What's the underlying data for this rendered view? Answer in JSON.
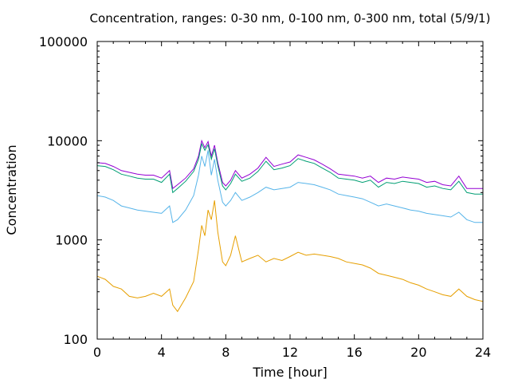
{
  "chart_data": {
    "type": "line",
    "title": "Concentration, ranges: 0-30 nm, 0-100 nm, 0-300 nm, total (5/9/1)",
    "xlabel": "Time [hour]",
    "ylabel": "Concentration",
    "xlim": [
      0,
      24
    ],
    "ylim": [
      100,
      100000
    ],
    "yscale": "log",
    "grid": false,
    "legend": "none",
    "x_ticks": [
      "0",
      "4",
      "8",
      "12",
      "16",
      "20",
      "24"
    ],
    "y_ticks": [
      "100",
      "1000",
      "10000",
      "100000"
    ],
    "x": [
      0,
      0.5,
      1,
      1.5,
      2,
      2.5,
      3,
      3.5,
      4,
      4.5,
      4.7,
      5,
      5.5,
      6,
      6.3,
      6.5,
      6.7,
      6.9,
      7.1,
      7.3,
      7.5,
      7.8,
      8,
      8.3,
      8.6,
      9,
      9.5,
      10,
      10.5,
      11,
      11.5,
      12,
      12.5,
      13,
      13.5,
      14,
      14.5,
      15,
      15.5,
      16,
      16.5,
      17,
      17.5,
      18,
      18.5,
      19,
      19.5,
      20,
      20.5,
      21,
      21.5,
      22,
      22.5,
      23,
      23.5,
      24
    ],
    "series": [
      {
        "color": "#9400d3",
        "values": [
          6000,
          5900,
          5500,
          5000,
          4800,
          4600,
          4500,
          4500,
          4200,
          5000,
          3300,
          3600,
          4200,
          5200,
          7000,
          10000,
          8500,
          9800,
          7000,
          9000,
          6000,
          3800,
          3500,
          4000,
          5000,
          4200,
          4600,
          5300,
          6800,
          5500,
          5800,
          6100,
          7200,
          6800,
          6400,
          5800,
          5200,
          4600,
          4500,
          4400,
          4200,
          4400,
          3800,
          4200,
          4100,
          4300,
          4200,
          4100,
          3800,
          3900,
          3600,
          3500,
          4400,
          3300,
          3300,
          3300
        ]
      },
      {
        "color": "#009e73",
        "values": [
          5600,
          5500,
          5100,
          4600,
          4400,
          4200,
          4100,
          4100,
          3800,
          4600,
          3000,
          3300,
          3900,
          4900,
          6500,
          9300,
          8000,
          9100,
          6500,
          8300,
          5600,
          3500,
          3200,
          3700,
          4600,
          3900,
          4200,
          4900,
          6200,
          5100,
          5300,
          5600,
          6600,
          6200,
          5900,
          5300,
          4800,
          4200,
          4100,
          4000,
          3800,
          4000,
          3400,
          3800,
          3700,
          3900,
          3800,
          3700,
          3400,
          3500,
          3300,
          3200,
          3900,
          3000,
          2900,
          2900
        ]
      },
      {
        "color": "#56b4e9",
        "values": [
          2800,
          2700,
          2500,
          2200,
          2100,
          2000,
          1950,
          1900,
          1850,
          2200,
          1500,
          1600,
          2000,
          2800,
          4500,
          7000,
          5500,
          8000,
          4500,
          6500,
          4000,
          2400,
          2200,
          2500,
          3000,
          2500,
          2700,
          3000,
          3400,
          3200,
          3300,
          3400,
          3800,
          3700,
          3600,
          3400,
          3200,
          2900,
          2800,
          2700,
          2600,
          2400,
          2200,
          2300,
          2200,
          2100,
          2000,
          1950,
          1850,
          1800,
          1750,
          1700,
          1900,
          1600,
          1500,
          1500
        ]
      },
      {
        "color": "#e69f00",
        "values": [
          430,
          400,
          340,
          320,
          270,
          260,
          270,
          290,
          270,
          320,
          220,
          190,
          260,
          380,
          800,
          1400,
          1100,
          2000,
          1600,
          2500,
          1200,
          600,
          550,
          700,
          1100,
          600,
          650,
          700,
          600,
          650,
          620,
          680,
          750,
          700,
          720,
          700,
          680,
          650,
          600,
          580,
          560,
          520,
          460,
          440,
          420,
          400,
          370,
          350,
          320,
          300,
          280,
          270,
          320,
          270,
          250,
          240
        ]
      }
    ]
  }
}
